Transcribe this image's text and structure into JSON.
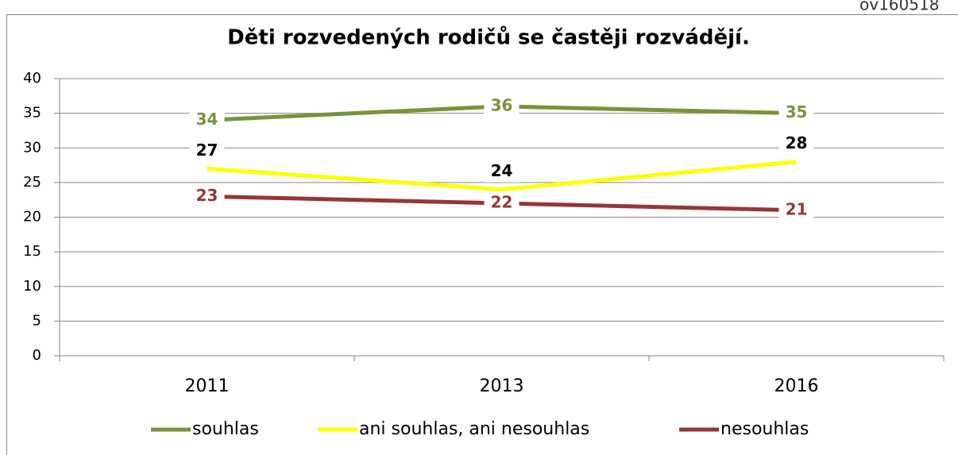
{
  "chart_data": {
    "type": "line",
    "title": "Děti rozvedených rodičů se častěji rozvádějí.",
    "annotation": "ov160518",
    "categories": [
      "2011",
      "2013",
      "2016"
    ],
    "series": [
      {
        "name": "souhlas",
        "color": "#77933c",
        "label_color": "#77933c",
        "values": [
          34,
          36,
          35
        ]
      },
      {
        "name": "ani souhlas, ani nesouhlas",
        "color": "#ffff00",
        "label_color": "#000000",
        "values": [
          27,
          24,
          28
        ]
      },
      {
        "name": "nesouhlas",
        "color": "#953735",
        "label_color": "#953735",
        "values": [
          23,
          22,
          21
        ]
      }
    ],
    "ylim": [
      0,
      40
    ],
    "yticks": [
      0,
      5,
      10,
      15,
      20,
      25,
      30,
      35,
      40
    ],
    "grid": true,
    "legend": "bottom"
  }
}
